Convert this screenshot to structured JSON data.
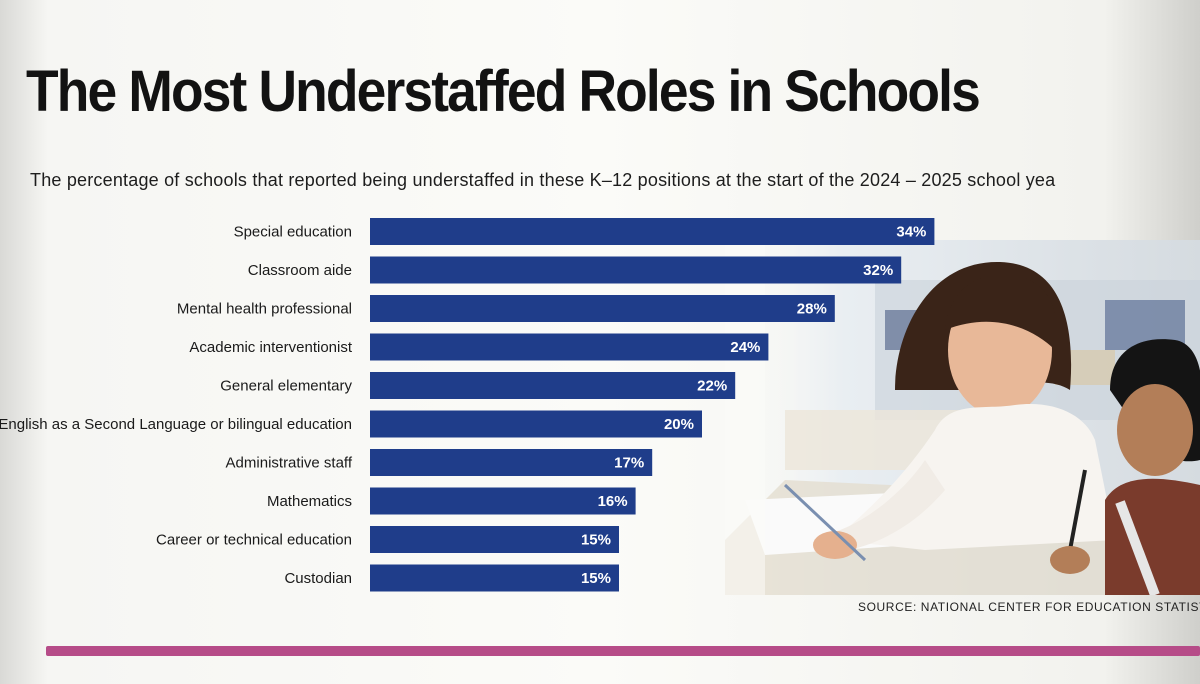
{
  "chart_data": {
    "type": "bar",
    "orientation": "horizontal",
    "title": "The Most Understaffed Roles in Schools",
    "subtitle": "The percentage of schools that reported being understaffed in these K–12 positions at the start of the 2024 – 2025 school yea",
    "categories": [
      "Special education",
      "Classroom aide",
      "Mental health professional",
      "Academic interventionist",
      "General elementary",
      "English as a Second Language or bilingual education",
      "Administrative staff",
      "Mathematics",
      "Career or technical education",
      "Custodian"
    ],
    "values": [
      34,
      32,
      28,
      24,
      22,
      20,
      17,
      16,
      15,
      15
    ],
    "value_labels": [
      "34%",
      "32%",
      "28%",
      "24%",
      "22%",
      "20%",
      "17%",
      "16%",
      "15%",
      "15%"
    ],
    "unit": "%",
    "bar_color": "#1f3d8a",
    "grid": false,
    "legend": "none",
    "source": "SOURCE: NATIONAL CENTER FOR EDUCATION STATISTIC"
  },
  "colors": {
    "accent_rule": "#b64c88",
    "bar": "#1f3d8a"
  }
}
